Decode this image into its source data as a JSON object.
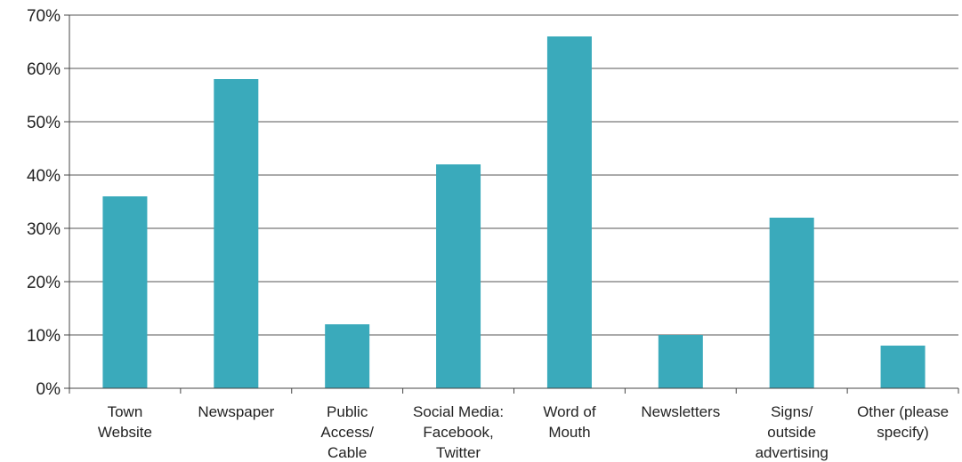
{
  "chart_data": {
    "type": "bar",
    "title": "",
    "xlabel": "",
    "ylabel": "",
    "ylim": [
      0,
      0.7
    ],
    "yticks": [
      0,
      0.1,
      0.2,
      0.3,
      0.4,
      0.5,
      0.6,
      0.7
    ],
    "ytick_labels": [
      "0%",
      "10%",
      "20%",
      "30%",
      "40%",
      "50%",
      "60%",
      "70%"
    ],
    "grid": true,
    "bar_color": "#3aaabb",
    "categories": [
      [
        "Town",
        "Website"
      ],
      [
        "Newspaper"
      ],
      [
        "Public",
        "Access/",
        "Cable"
      ],
      [
        "Social Media:",
        "Facebook,",
        "Twitter"
      ],
      [
        "Word of",
        "Mouth"
      ],
      [
        "Newsletters"
      ],
      [
        "Signs/",
        "outside",
        "advertising"
      ],
      [
        "Other (please",
        "specify)"
      ]
    ],
    "values": [
      0.36,
      0.58,
      0.12,
      0.42,
      0.66,
      0.1,
      0.32,
      0.08
    ]
  }
}
